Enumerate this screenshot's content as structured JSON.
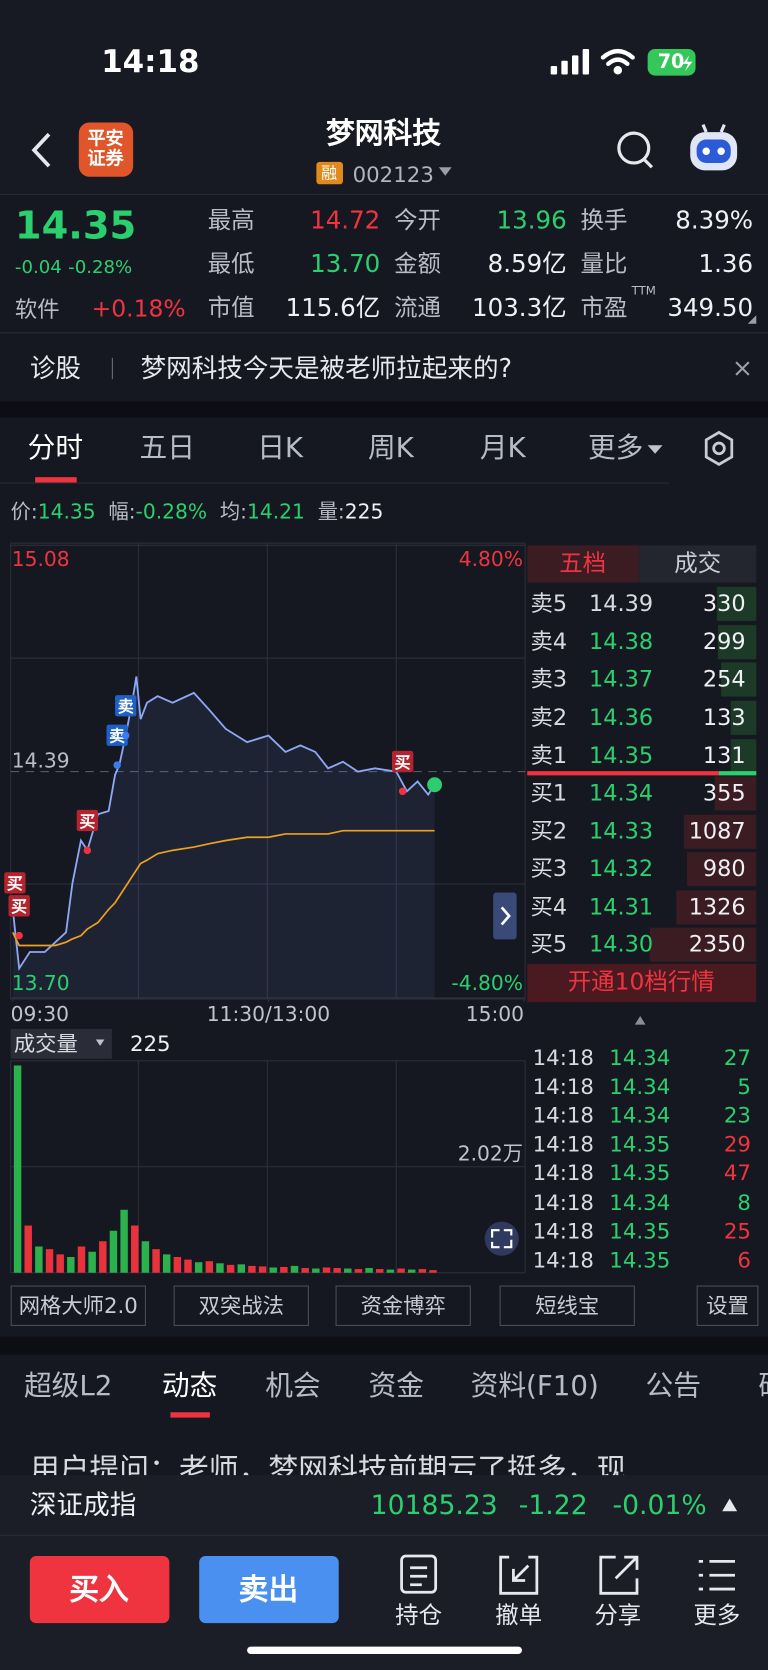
{
  "status_bar": {
    "time": "14:18",
    "battery": "70"
  },
  "header": {
    "broker": [
      "平安",
      "证券"
    ],
    "title": "梦网科技",
    "badge": "融",
    "code": "002123"
  },
  "quote": {
    "price": "14.35",
    "change": "-0.04",
    "change_pct": "-0.28%",
    "sector": "软件",
    "sector_change": "+0.18%",
    "fields": [
      {
        "label": "最高",
        "value": "14.72",
        "color": "#f0343f"
      },
      {
        "label": "今开",
        "value": "13.96",
        "color": "#2bd06e"
      },
      {
        "label": "换手",
        "value": "8.39%",
        "color": "#eef0f4"
      },
      {
        "label": "最低",
        "value": "13.70",
        "color": "#2bd06e"
      },
      {
        "label": "金额",
        "value": "8.59亿",
        "color": "#eef0f4"
      },
      {
        "label": "量比",
        "value": "1.36",
        "color": "#eef0f4"
      },
      {
        "label": "市值",
        "value": "115.6亿",
        "color": "#eef0f4"
      },
      {
        "label": "流通",
        "value": "103.3亿",
        "color": "#eef0f4"
      },
      {
        "label": "市盈",
        "sup": "TTM",
        "value": "349.50",
        "color": "#eef0f4"
      }
    ]
  },
  "banner": {
    "tag": "诊股",
    "text": "梦网科技今天是被老师拉起来的?"
  },
  "chart_tabs": [
    "分时",
    "五日",
    "日K",
    "周K",
    "月K",
    "更多"
  ],
  "info_bar": [
    {
      "label": "价:",
      "value": "14.35",
      "color": "#2bd06e"
    },
    {
      "label": "幅:",
      "value": "-0.28%",
      "color": "#2bd06e"
    },
    {
      "label": "均:",
      "value": "14.21",
      "color": "#2bd06e"
    },
    {
      "label": "量:",
      "value": "225",
      "color": "#eef0f4"
    }
  ],
  "chart_data": {
    "type": "line",
    "x": [
      0,
      3,
      8,
      15,
      20,
      25,
      28,
      32,
      35,
      40,
      45,
      48,
      50,
      53,
      56,
      58,
      60,
      63,
      68,
      75,
      85,
      92,
      100,
      110,
      120,
      128,
      135,
      142,
      148,
      155,
      162,
      170,
      180,
      185,
      190,
      195,
      198
    ],
    "series": [
      {
        "color": "#8ea8f5",
        "values": [
          13.97,
          13.79,
          13.84,
          13.84,
          13.87,
          13.9,
          14.05,
          14.18,
          14.15,
          14.26,
          14.27,
          14.38,
          14.41,
          14.5,
          14.6,
          14.68,
          14.55,
          14.6,
          14.62,
          14.6,
          14.63,
          14.58,
          14.52,
          14.48,
          14.5,
          14.45,
          14.47,
          14.45,
          14.4,
          14.42,
          14.39,
          14.4,
          14.39,
          14.33,
          14.36,
          14.32,
          14.35
        ]
      },
      {
        "color": "#f0a020",
        "values": [
          13.9,
          13.86,
          13.86,
          13.86,
          13.86,
          13.87,
          13.88,
          13.89,
          13.91,
          13.93,
          13.97,
          13.99,
          14.01,
          14.04,
          14.07,
          14.09,
          14.11,
          14.12,
          14.14,
          14.15,
          14.16,
          14.17,
          14.18,
          14.19,
          14.19,
          14.2,
          14.2,
          14.2,
          14.2,
          14.21,
          14.21,
          14.21,
          14.21,
          14.21,
          14.21,
          14.21,
          14.21
        ]
      }
    ],
    "xlim": [
      0,
      240
    ],
    "xticks": [
      {
        "value": 0,
        "label": "09:30"
      },
      {
        "value": 120,
        "label": "11:30/13:00"
      },
      {
        "value": 240,
        "label": "15:00"
      }
    ],
    "ylim": [
      13.7,
      15.08
    ],
    "yticks": [
      15.08,
      14.39,
      {
        "value": 13.7,
        "label": "13.70"
      }
    ],
    "y2lim": [
      -4.8,
      4.8
    ],
    "y2ticks": [
      {
        "value": 4.8,
        "label": "4.80%"
      },
      {
        "value": -4.8,
        "label": "-4.80%"
      }
    ],
    "signals": [
      {
        "label": "买",
        "x": 1,
        "y": 13.96
      },
      {
        "label": "买",
        "x": 3,
        "y": 13.89
      },
      {
        "label": "买",
        "x": 35,
        "y": 14.15
      },
      {
        "label": "卖",
        "x": 49,
        "y": 14.41
      },
      {
        "label": "卖",
        "x": 53,
        "y": 14.5
      },
      {
        "label": "买",
        "x": 183,
        "y": 14.33
      }
    ],
    "volume_title": "成交量",
    "volume_value": "225",
    "volume": {
      "x": [
        0,
        5,
        10,
        15,
        20,
        25,
        30,
        35,
        40,
        45,
        50,
        55,
        60,
        65,
        70,
        75,
        80,
        85,
        90,
        95,
        100,
        105,
        110,
        115,
        120,
        125,
        130,
        135,
        140,
        145,
        150,
        155,
        160,
        165,
        170,
        175,
        180,
        185,
        190,
        195
      ],
      "values": [
        39500,
        9000,
        5000,
        4500,
        3500,
        3000,
        5000,
        4000,
        6000,
        8000,
        12000,
        9000,
        6000,
        4500,
        3500,
        3000,
        2500,
        2000,
        2200,
        1800,
        1500,
        1600,
        1300,
        1200,
        1000,
        1100,
        1300,
        900,
        800,
        1000,
        900,
        800,
        700,
        900,
        700,
        600,
        800,
        600,
        700,
        500
      ],
      "colors": [
        "#2bb24c",
        "#e8323c",
        "#2bb24c",
        "#e8323c",
        "#e8323c",
        "#2bb24c",
        "#e8323c",
        "#2bb24c",
        "#e8323c",
        "#2bb24c",
        "#2bb24c",
        "#e8323c",
        "#2bb24c",
        "#e8323c",
        "#2bb24c",
        "#e8323c",
        "#e8323c",
        "#2bb24c",
        "#e8323c",
        "#2bb24c",
        "#e8323c",
        "#2bb24c",
        "#e8323c",
        "#e8323c",
        "#2bb24c",
        "#e8323c",
        "#2bb24c",
        "#e8323c",
        "#2bb24c",
        "#e8323c",
        "#e8323c",
        "#2bb24c",
        "#e8323c",
        "#2bb24c",
        "#e8323c",
        "#2bb24c",
        "#e8323c",
        "#2bb24c",
        "#e8323c",
        "#e8323c"
      ],
      "vlim": [
        0,
        40400
      ],
      "vticks": [
        {
          "value": 20200,
          "label": "2.02万"
        }
      ]
    }
  },
  "order_book": {
    "tabs": [
      "五档",
      "成交"
    ],
    "asks": [
      {
        "label": "卖5",
        "price": "14.39",
        "volume": 330,
        "color": "#d8dae0"
      },
      {
        "label": "卖4",
        "price": "14.38",
        "volume": 299,
        "color": "#2bd06e"
      },
      {
        "label": "卖3",
        "price": "14.37",
        "volume": 254,
        "color": "#2bd06e"
      },
      {
        "label": "卖2",
        "price": "14.36",
        "volume": 133,
        "color": "#2bd06e"
      },
      {
        "label": "卖1",
        "price": "14.35",
        "volume": 131,
        "color": "#2bd06e"
      }
    ],
    "bids": [
      {
        "label": "买1",
        "price": "14.34",
        "volume": 355,
        "color": "#2bd06e"
      },
      {
        "label": "买2",
        "price": "14.33",
        "volume": 1087,
        "color": "#2bd06e"
      },
      {
        "label": "买3",
        "price": "14.32",
        "volume": 980,
        "color": "#2bd06e"
      },
      {
        "label": "买4",
        "price": "14.31",
        "volume": 1326,
        "color": "#2bd06e"
      },
      {
        "label": "买5",
        "price": "14.30",
        "volume": 2350,
        "color": "#2bd06e"
      }
    ],
    "button": "开通10档行情",
    "trades": [
      {
        "time": "14:18",
        "price": "14.34",
        "volume": 27,
        "color": "#2bd06e"
      },
      {
        "time": "14:18",
        "price": "14.34",
        "volume": 5,
        "color": "#2bd06e"
      },
      {
        "time": "14:18",
        "price": "14.34",
        "volume": 23,
        "color": "#2bd06e"
      },
      {
        "time": "14:18",
        "price": "14.35",
        "volume": 29,
        "color": "#f0343f"
      },
      {
        "time": "14:18",
        "price": "14.35",
        "volume": 47,
        "color": "#f0343f"
      },
      {
        "time": "14:18",
        "price": "14.34",
        "volume": 8,
        "color": "#2bd06e"
      },
      {
        "time": "14:18",
        "price": "14.35",
        "volume": 25,
        "color": "#f0343f"
      },
      {
        "time": "14:18",
        "price": "14.35",
        "volume": 6,
        "color": "#f0343f"
      }
    ]
  },
  "tools": [
    "网格大师2.0",
    "双突战法",
    "资金博弈",
    "短线宝",
    "设置"
  ],
  "info_tabs": [
    "超级L2",
    "动态",
    "机会",
    "资金",
    "资料(F10)",
    "公告",
    "研"
  ],
  "post": "用户提问：老师，梦网科技前期亏了挺多，现",
  "index_bar": {
    "name": "深证成指",
    "value": "10185.23",
    "change": "-1.22",
    "change_pct": "-0.01%"
  },
  "bottom_bar": {
    "buy": "买入",
    "sell": "卖出",
    "actions": [
      "持仓",
      "撤单",
      "分享",
      "更多"
    ]
  }
}
